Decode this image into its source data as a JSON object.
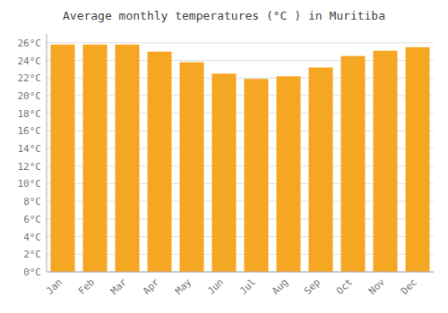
{
  "chart_data": {
    "type": "bar",
    "title": "Average monthly temperatures (°C ) in Muritiba",
    "categories": [
      "Jan",
      "Feb",
      "Mar",
      "Apr",
      "May",
      "Jun",
      "Jul",
      "Aug",
      "Sep",
      "Oct",
      "Nov",
      "Dec"
    ],
    "values": [
      25.8,
      25.8,
      25.8,
      25.0,
      23.8,
      22.5,
      21.9,
      22.2,
      23.2,
      24.5,
      25.1,
      25.5
    ],
    "color": "#F5A623",
    "ylim": [
      0,
      27
    ],
    "yticks": [
      {
        "value": 0,
        "label": "0°C"
      },
      {
        "value": 2,
        "label": "2°C"
      },
      {
        "value": 4,
        "label": "4°C"
      },
      {
        "value": 6,
        "label": "6°C"
      },
      {
        "value": 8,
        "label": "8°C"
      },
      {
        "value": 10,
        "label": "10°C"
      },
      {
        "value": 12,
        "label": "12°C"
      },
      {
        "value": 14,
        "label": "14°C"
      },
      {
        "value": 16,
        "label": "16°C"
      },
      {
        "value": 18,
        "label": "18°C"
      },
      {
        "value": 20,
        "label": "20°C"
      },
      {
        "value": 22,
        "label": "22°C"
      },
      {
        "value": 24,
        "label": "24°C"
      },
      {
        "value": 26,
        "label": "26°C"
      }
    ],
    "grid": true
  }
}
